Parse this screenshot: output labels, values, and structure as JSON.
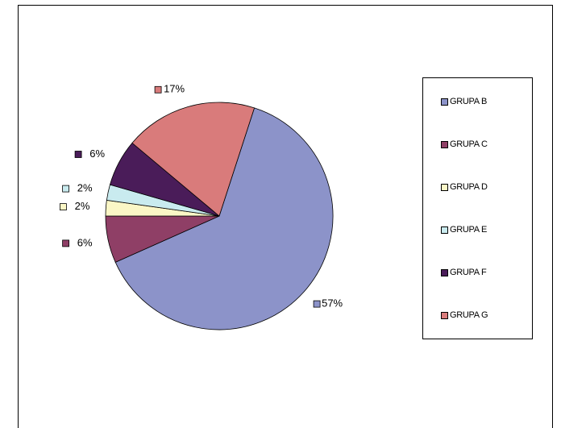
{
  "chart_data": {
    "type": "pie",
    "title": "",
    "slices": [
      {
        "label": "GRUPA B",
        "value": 57,
        "display": "57%",
        "color": "#8c93c9"
      },
      {
        "label": "GRUPA C",
        "value": 6,
        "display": "6%",
        "color": "#8f3f66"
      },
      {
        "label": "GRUPA D",
        "value": 2,
        "display": "2%",
        "color": "#fbf7c6"
      },
      {
        "label": "GRUPA E",
        "value": 2,
        "display": "2%",
        "color": "#c9ebef"
      },
      {
        "label": "GRUPA F",
        "value": 6,
        "display": "6%",
        "color": "#4a1c59"
      },
      {
        "label": "GRUPA G",
        "value": 17,
        "display": "17%",
        "color": "#d97b7b"
      }
    ],
    "legend_position": "right"
  },
  "legend": {
    "items": [
      {
        "label": "GRUPA B",
        "color": "#8c93c9"
      },
      {
        "label": "GRUPA C",
        "color": "#8f3f66"
      },
      {
        "label": "GRUPA D",
        "color": "#fbf7c6"
      },
      {
        "label": "GRUPA E",
        "color": "#c9ebef"
      },
      {
        "label": "GRUPA F",
        "color": "#4a1c59"
      },
      {
        "label": "GRUPA G",
        "color": "#d97b7b"
      }
    ]
  }
}
